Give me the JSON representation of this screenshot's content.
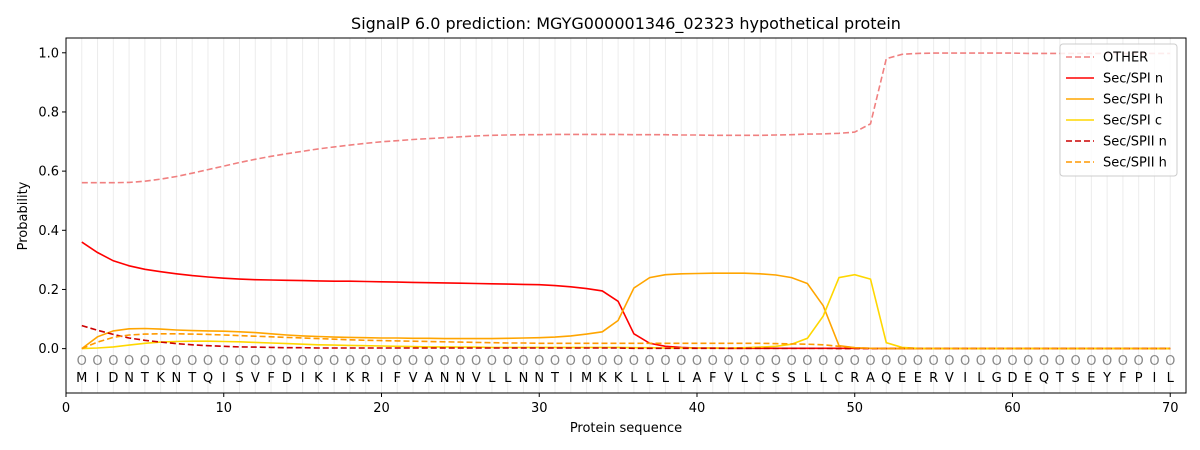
{
  "chart_data": {
    "type": "line",
    "title": "SignalP 6.0 prediction: MGYG000001346_02323 hypothetical protein",
    "xlabel": "Protein sequence",
    "ylabel": "Probability",
    "xlim": [
      0,
      71
    ],
    "ylim": [
      -0.15,
      1.05
    ],
    "xticks": [
      0,
      10,
      20,
      30,
      40,
      50,
      60,
      70
    ],
    "yticks": [
      0.0,
      0.2,
      0.4,
      0.6,
      0.8,
      1.0
    ],
    "xtick_labels": [
      "0",
      "10",
      "20",
      "30",
      "40",
      "50",
      "60",
      "70"
    ],
    "ytick_labels": [
      "0.0",
      "0.2",
      "0.4",
      "0.6",
      "0.8",
      "1.0"
    ],
    "grid": "vertical lines at each residue",
    "legend_position": "top-right",
    "sequence": [
      "M",
      "I",
      "D",
      "N",
      "T",
      "K",
      "N",
      "T",
      "Q",
      "I",
      "S",
      "V",
      "F",
      "D",
      "I",
      "K",
      "I",
      "K",
      "R",
      "I",
      "F",
      "V",
      "A",
      "N",
      "N",
      "V",
      "L",
      "L",
      "N",
      "N",
      "T",
      "I",
      "M",
      "K",
      "K",
      "L",
      "L",
      "L",
      "L",
      "A",
      "F",
      "V",
      "L",
      "C",
      "S",
      "S",
      "L",
      "L",
      "C",
      "R",
      "A",
      "Q",
      "E",
      "E",
      "R",
      "V",
      "I",
      "L",
      "G",
      "D",
      "E",
      "Q",
      "T",
      "S",
      "E",
      "Y",
      "F",
      "P",
      "I",
      "L"
    ],
    "position_marker": "O",
    "series": [
      {
        "name": "OTHER",
        "color": "#f08080",
        "style": "dashed",
        "values": [
          0.561,
          0.561,
          0.561,
          0.562,
          0.566,
          0.573,
          0.582,
          0.593,
          0.605,
          0.617,
          0.629,
          0.64,
          0.65,
          0.659,
          0.667,
          0.675,
          0.682,
          0.688,
          0.694,
          0.699,
          0.703,
          0.707,
          0.71,
          0.713,
          0.716,
          0.719,
          0.721,
          0.722,
          0.723,
          0.723,
          0.724,
          0.724,
          0.724,
          0.724,
          0.724,
          0.723,
          0.723,
          0.723,
          0.722,
          0.722,
          0.721,
          0.721,
          0.721,
          0.721,
          0.722,
          0.723,
          0.725,
          0.726,
          0.728,
          0.732,
          0.76,
          0.98,
          0.995,
          0.998,
          0.999,
          0.999,
          0.999,
          0.999,
          0.999,
          0.999,
          0.998,
          0.998,
          0.998,
          0.998,
          0.998,
          0.998,
          0.998,
          0.998,
          0.998,
          0.998
        ]
      },
      {
        "name": "Sec/SPI n",
        "color": "#ff0000",
        "style": "solid",
        "values": [
          0.36,
          0.325,
          0.297,
          0.28,
          0.268,
          0.26,
          0.253,
          0.247,
          0.242,
          0.238,
          0.235,
          0.233,
          0.232,
          0.231,
          0.23,
          0.229,
          0.228,
          0.228,
          0.227,
          0.226,
          0.225,
          0.224,
          0.223,
          0.222,
          0.221,
          0.22,
          0.219,
          0.218,
          0.217,
          0.216,
          0.213,
          0.209,
          0.203,
          0.195,
          0.16,
          0.05,
          0.018,
          0.008,
          0.004,
          0.002,
          0.002,
          0.001,
          0.001,
          0.001,
          0.001,
          0.001,
          0.001,
          0.001,
          0.001,
          0.001,
          0.001,
          0.0,
          0.0,
          0.0,
          0.0,
          0.0,
          0.0,
          0.0,
          0.0,
          0.0,
          0.0,
          0.0,
          0.0,
          0.0,
          0.0,
          0.0,
          0.0,
          0.0,
          0.0,
          0.0
        ]
      },
      {
        "name": "Sec/SPI h",
        "color": "#ffa500",
        "style": "solid",
        "values": [
          0.0,
          0.04,
          0.06,
          0.067,
          0.068,
          0.066,
          0.063,
          0.061,
          0.06,
          0.059,
          0.057,
          0.054,
          0.05,
          0.046,
          0.043,
          0.041,
          0.039,
          0.038,
          0.037,
          0.036,
          0.036,
          0.035,
          0.035,
          0.034,
          0.034,
          0.034,
          0.034,
          0.035,
          0.036,
          0.037,
          0.039,
          0.043,
          0.049,
          0.057,
          0.095,
          0.205,
          0.24,
          0.25,
          0.253,
          0.254,
          0.255,
          0.255,
          0.255,
          0.253,
          0.249,
          0.24,
          0.22,
          0.145,
          0.01,
          0.003,
          0.001,
          0.0,
          0.0,
          0.0,
          0.0,
          0.0,
          0.0,
          0.0,
          0.0,
          0.0,
          0.0,
          0.0,
          0.0,
          0.0,
          0.0,
          0.0,
          0.0,
          0.0,
          0.0,
          0.0
        ]
      },
      {
        "name": "Sec/SPI c",
        "color": "#ffd700",
        "style": "solid",
        "values": [
          0.0,
          0.002,
          0.006,
          0.012,
          0.018,
          0.022,
          0.024,
          0.025,
          0.025,
          0.024,
          0.023,
          0.021,
          0.019,
          0.017,
          0.015,
          0.013,
          0.012,
          0.011,
          0.01,
          0.009,
          0.008,
          0.007,
          0.006,
          0.006,
          0.005,
          0.005,
          0.004,
          0.004,
          0.004,
          0.004,
          0.004,
          0.004,
          0.004,
          0.004,
          0.004,
          0.003,
          0.003,
          0.002,
          0.002,
          0.002,
          0.002,
          0.002,
          0.003,
          0.005,
          0.008,
          0.015,
          0.035,
          0.11,
          0.24,
          0.25,
          0.235,
          0.02,
          0.004,
          0.001,
          0.0,
          0.0,
          0.0,
          0.0,
          0.0,
          0.0,
          0.0,
          0.0,
          0.0,
          0.0,
          0.0,
          0.0,
          0.0,
          0.0,
          0.0,
          0.0
        ]
      },
      {
        "name": "Sec/SPII n",
        "color": "#cc0000",
        "style": "dashed",
        "values": [
          0.078,
          0.062,
          0.048,
          0.036,
          0.028,
          0.022,
          0.017,
          0.013,
          0.01,
          0.008,
          0.006,
          0.005,
          0.004,
          0.003,
          0.003,
          0.002,
          0.002,
          0.002,
          0.002,
          0.002,
          0.002,
          0.002,
          0.002,
          0.002,
          0.002,
          0.002,
          0.002,
          0.002,
          0.002,
          0.002,
          0.002,
          0.002,
          0.002,
          0.002,
          0.002,
          0.001,
          0.001,
          0.001,
          0.001,
          0.001,
          0.001,
          0.001,
          0.001,
          0.001,
          0.001,
          0.001,
          0.001,
          0.001,
          0.0,
          0.0,
          0.0,
          0.0,
          0.0,
          0.0,
          0.0,
          0.0,
          0.0,
          0.0,
          0.0,
          0.0,
          0.0,
          0.0,
          0.0,
          0.0,
          0.0,
          0.0,
          0.0,
          0.0,
          0.0,
          0.0
        ]
      },
      {
        "name": "Sec/SPII h",
        "color": "#ff9900",
        "style": "dashed",
        "values": [
          0.0,
          0.022,
          0.038,
          0.046,
          0.049,
          0.05,
          0.05,
          0.049,
          0.048,
          0.046,
          0.044,
          0.042,
          0.04,
          0.038,
          0.036,
          0.034,
          0.032,
          0.03,
          0.028,
          0.027,
          0.026,
          0.025,
          0.024,
          0.023,
          0.022,
          0.021,
          0.02,
          0.019,
          0.019,
          0.018,
          0.018,
          0.018,
          0.018,
          0.018,
          0.018,
          0.018,
          0.018,
          0.018,
          0.018,
          0.018,
          0.018,
          0.018,
          0.018,
          0.018,
          0.017,
          0.016,
          0.015,
          0.013,
          0.008,
          0.003,
          0.001,
          0.0,
          0.0,
          0.0,
          0.0,
          0.0,
          0.0,
          0.0,
          0.0,
          0.0,
          0.0,
          0.0,
          0.0,
          0.0,
          0.0,
          0.0,
          0.0,
          0.0,
          0.0,
          0.0
        ]
      }
    ]
  }
}
